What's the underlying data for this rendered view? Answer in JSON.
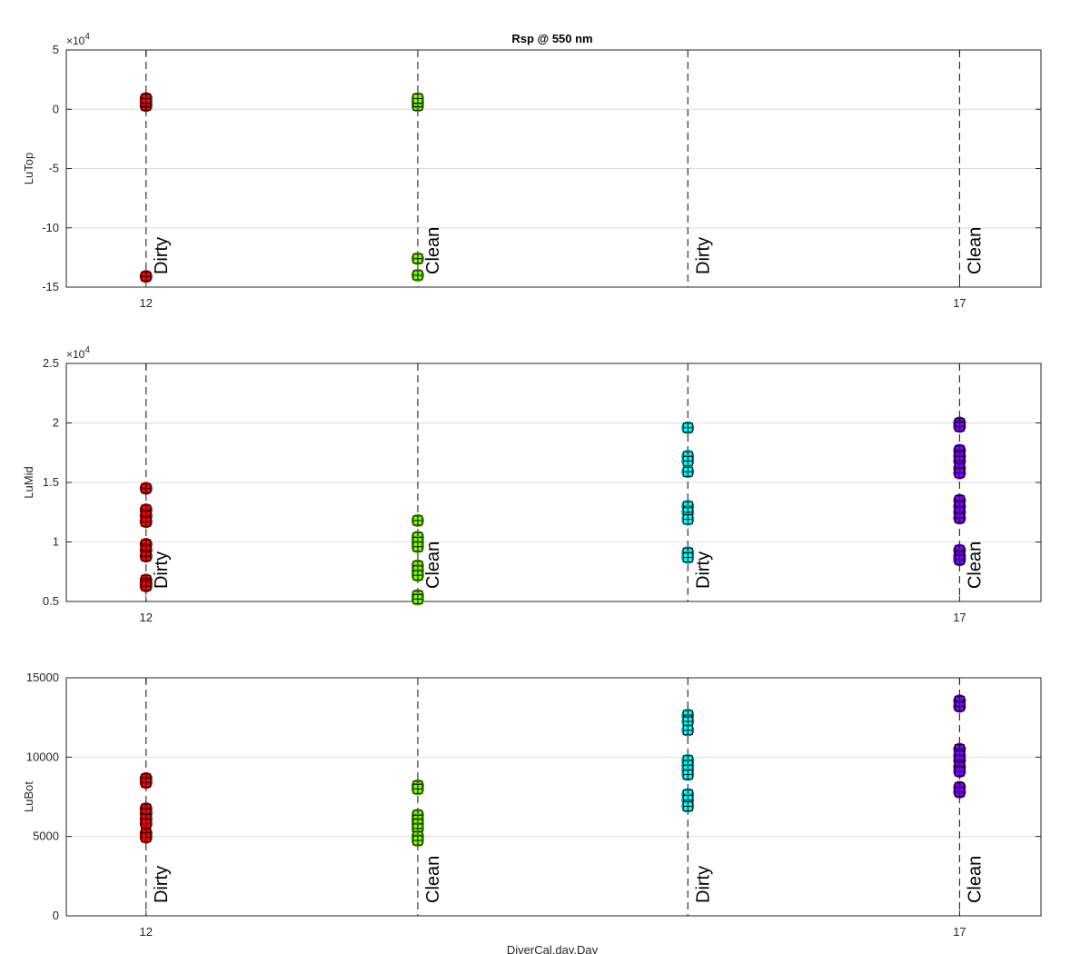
{
  "chart_data": {
    "type": "scatter",
    "title": "Rsp @ 550 nm",
    "xlabel": "DiverCal.day.Day",
    "xlim": [
      11.51,
      17.5
    ],
    "xticks": [
      12,
      17
    ],
    "events": [
      {
        "x": 12,
        "label": "Dirty"
      },
      {
        "x": 13.67,
        "label": "Clean"
      },
      {
        "x": 15.33,
        "label": "Dirty"
      },
      {
        "x": 17,
        "label": "Clean"
      }
    ],
    "groups": [
      {
        "x": 12,
        "color": "#ff0000"
      },
      {
        "x": 13.67,
        "color": "#80ff00"
      },
      {
        "x": 15.33,
        "color": "#00ffff"
      },
      {
        "x": 17,
        "color": "#8000ff"
      }
    ],
    "panels": [
      {
        "ylabel": "LuTop",
        "exponent": "4",
        "ylim": [
          -15,
          5
        ],
        "yticks": [
          -15,
          -10,
          -5,
          0,
          5
        ],
        "groups": [
          {
            "values": [
              0.3,
              0.6,
              0.9,
              -14.1
            ]
          },
          {
            "values": [
              0.3,
              0.6,
              0.9,
              -12.6,
              -14.0
            ]
          },
          {
            "values": []
          },
          {
            "values": []
          }
        ]
      },
      {
        "ylabel": "LuMid",
        "exponent": "4",
        "ylim": [
          0.5,
          2.5
        ],
        "yticks": [
          0.5,
          1,
          1.5,
          2,
          2.5
        ],
        "groups": [
          {
            "values": [
              1.45,
              1.27,
              1.22,
              1.17,
              0.98,
              0.93,
              0.88,
              0.68,
              0.65,
              0.63
            ]
          },
          {
            "values": [
              1.18,
              1.04,
              1.0,
              0.96,
              0.8,
              0.76,
              0.72,
              0.55,
              0.52
            ]
          },
          {
            "values": [
              1.96,
              1.72,
              1.68,
              1.59,
              1.3,
              1.25,
              1.19,
              0.91,
              0.87
            ]
          },
          {
            "values": [
              2.0,
              1.97,
              1.77,
              1.72,
              1.68,
              1.62,
              1.58,
              1.35,
              1.3,
              1.25,
              1.2,
              0.93,
              0.88,
              0.85
            ]
          }
        ]
      },
      {
        "ylabel": "LuBot",
        "exponent": "",
        "ylim": [
          0,
          15000
        ],
        "yticks": [
          0,
          5000,
          10000,
          15000
        ],
        "groups": [
          {
            "values": [
              8650,
              8400,
              6750,
              6450,
              6100,
              5800,
              5200,
              4950
            ]
          },
          {
            "values": [
              8200,
              8000,
              6350,
              6050,
              5800,
              5500,
              5000,
              4750
            ]
          },
          {
            "values": [
              12650,
              12250,
              11700,
              9800,
              9500,
              9200,
              8900,
              7650,
              7300,
              6900
            ]
          },
          {
            "values": [
              13550,
              13200,
              10500,
              10100,
              9800,
              9400,
              9100,
              8100,
              7800
            ]
          }
        ]
      }
    ]
  }
}
